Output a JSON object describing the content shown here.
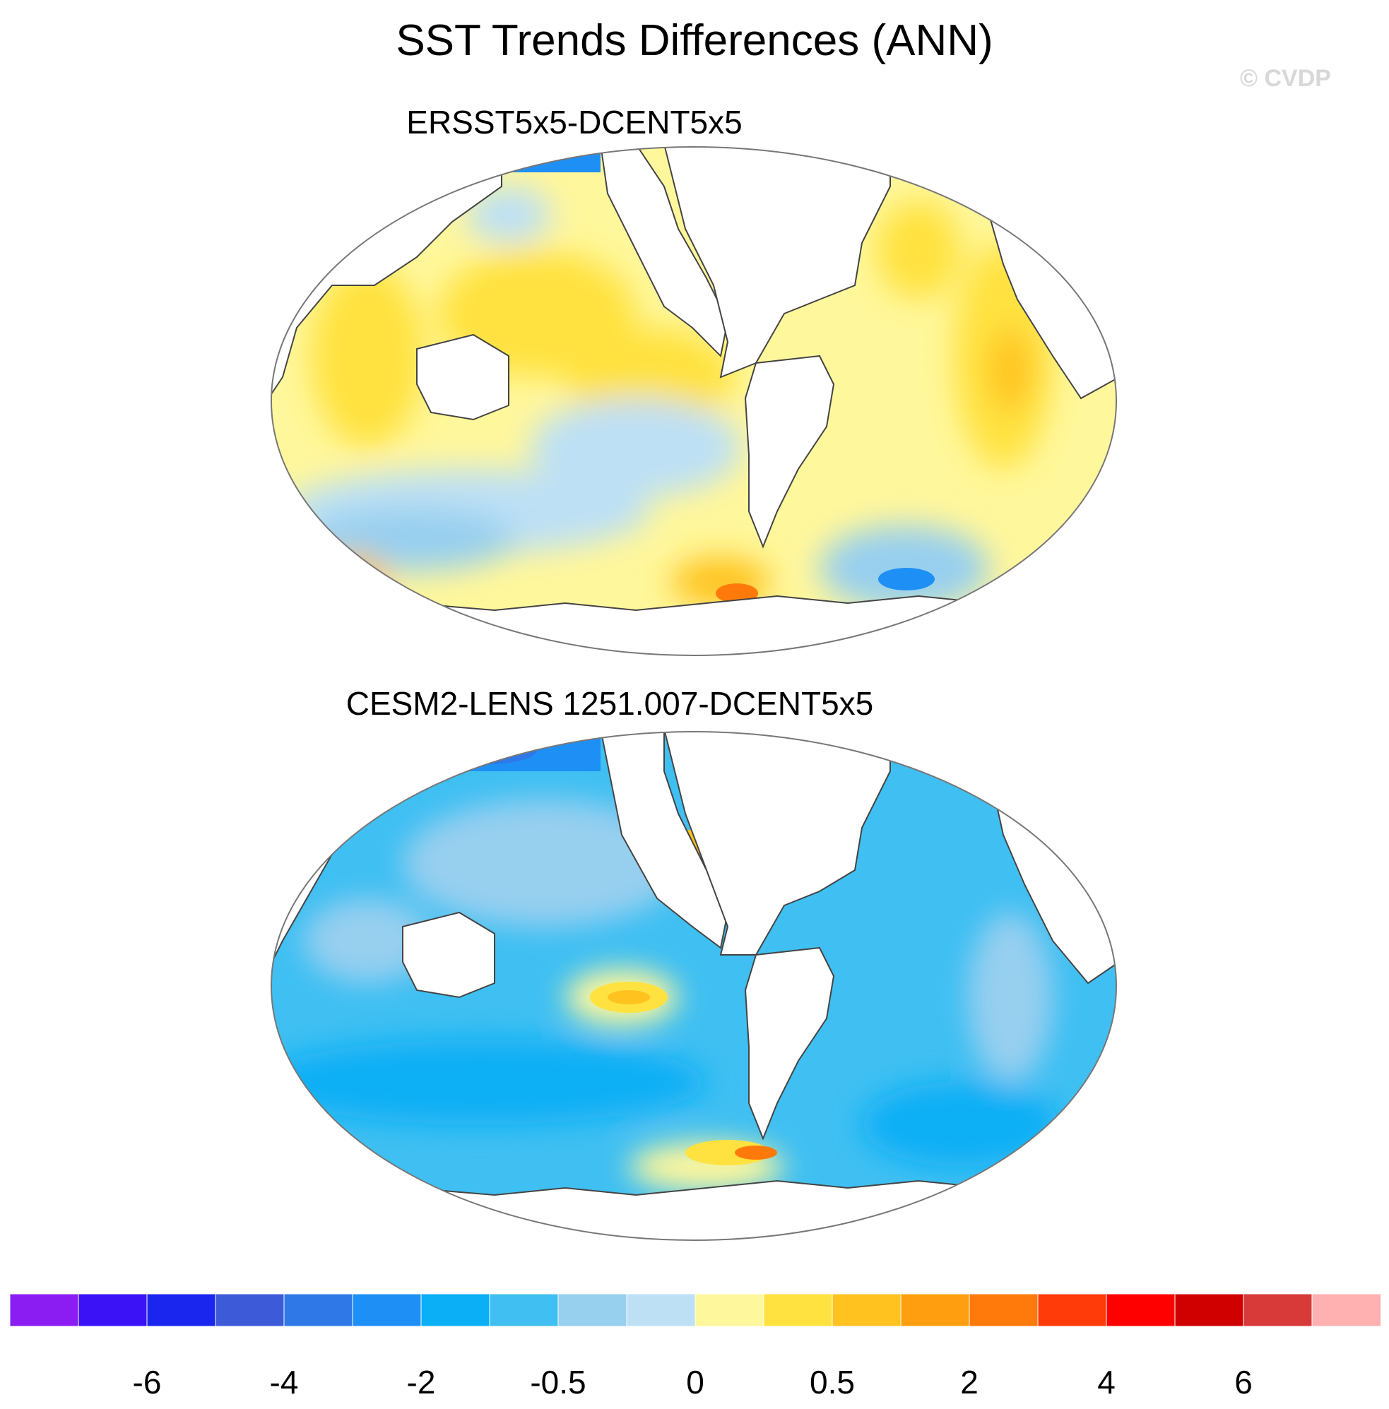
{
  "title": "SST Trends Differences (ANN)",
  "watermark": "© CVDP",
  "panels": [
    {
      "title": "ERSST5x5-DCENT5x5",
      "dominant_sign": "positive"
    },
    {
      "title": "CESM2-LENS 1251.007-DCENT5x5",
      "dominant_sign": "negative"
    }
  ],
  "colorbar": {
    "colors": [
      "#8b1cf2",
      "#3a12f5",
      "#1a25ee",
      "#3d5ad9",
      "#2e78e8",
      "#1e90f5",
      "#0aaff5",
      "#3fbff2",
      "#97cfef",
      "#bde0f5",
      "#fff79c",
      "#ffe23f",
      "#ffc21f",
      "#ff9f0f",
      "#ff7a0a",
      "#ff3b0a",
      "#ff0000",
      "#d10000",
      "#d83a3a",
      "#ffb0b0"
    ],
    "tick_labels": [
      "-6",
      "-4",
      "-2",
      "-0.5",
      "0",
      "0.5",
      "2",
      "4",
      "6"
    ]
  },
  "palette": {
    "coast": "#444444",
    "outline": "#777777",
    "land": "#ffffff"
  }
}
